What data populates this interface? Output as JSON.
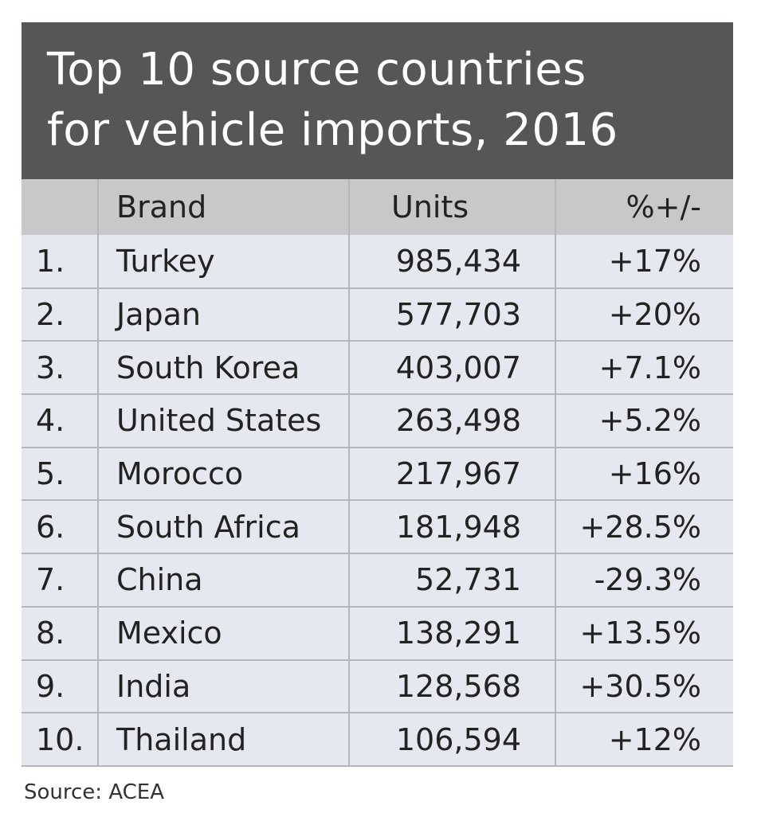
{
  "title": {
    "line1": "Top 10 source countries",
    "line2": "for vehicle imports, 2016"
  },
  "table": {
    "headers": [
      "",
      "Brand",
      "Units",
      "%+/-"
    ],
    "rows": [
      [
        "1.",
        "Turkey",
        "985,434",
        "+17%"
      ],
      [
        "2.",
        "Japan",
        "577,703",
        "+20%"
      ],
      [
        "3.",
        "South Korea",
        "403,007",
        "+7.1%"
      ],
      [
        "4.",
        "United States",
        "263,498",
        "+5.2%"
      ],
      [
        "5.",
        "Morocco",
        "217,967",
        "+16%"
      ],
      [
        "6.",
        "South Africa",
        "181,948",
        "+28.5%"
      ],
      [
        "7.",
        "China",
        "52,731",
        "-29.3%"
      ],
      [
        "8.",
        "Mexico",
        "138,291",
        "+13.5%"
      ],
      [
        "9.",
        "India",
        "128,568",
        "+30.5%"
      ],
      [
        "10.",
        "Thailand",
        "106,594",
        "+12%"
      ]
    ]
  },
  "source": "Source: ACEA"
}
